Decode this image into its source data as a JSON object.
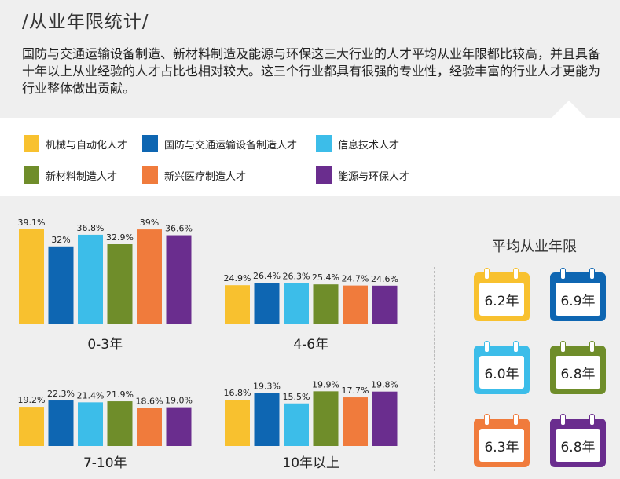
{
  "header": {
    "title": "/从业年限统计/",
    "intro": "国防与交通运输设备制造、新材料制造及能源与环保这三大行业的人才平均从业年限都比较高，并且具备十年以上从业经验的人才占比也相对较大。这三个行业都具有很强的专业性，经验丰富的行业人才更能为行业整体做出贡献。"
  },
  "colors": [
    "#f8c12f",
    "#0e66b2",
    "#3cbde9",
    "#6f8d2a",
    "#f07b3c",
    "#6a2d8e"
  ],
  "chart_data": {
    "type": "bar",
    "series": [
      {
        "name": "机械与自动化人才"
      },
      {
        "name": "国防与交通运输设备制造人才"
      },
      {
        "name": "信息技术人才"
      },
      {
        "name": "新材料制造人才"
      },
      {
        "name": "新兴医疗制造人才"
      },
      {
        "name": "能源与环保人才"
      }
    ],
    "groups": [
      {
        "label": "0-3年",
        "values": [
          39.1,
          32,
          36.8,
          32.9,
          39,
          36.6
        ],
        "value_labels": [
          "39.1%",
          "32%",
          "36.8%",
          "32.9%",
          "39%",
          "36.6%"
        ]
      },
      {
        "label": "4-6年",
        "values": [
          24.9,
          26.4,
          26.3,
          25.4,
          24.7,
          24.6
        ],
        "value_labels": [
          "24.9%",
          "26.4%",
          "26.3%",
          "25.4%",
          "24.7%",
          "24.6%"
        ]
      },
      {
        "label": "7-10年",
        "values": [
          19.2,
          22.3,
          21.4,
          21.9,
          18.6,
          19.0
        ],
        "value_labels": [
          "19.2%",
          "22.3%",
          "21.4%",
          "21.9%",
          "18.6%",
          "19.0%"
        ]
      },
      {
        "label": "10年以上",
        "values": [
          16.8,
          19.3,
          15.5,
          19.9,
          17.7,
          19.8
        ],
        "value_labels": [
          "16.8%",
          "19.3%",
          "15.5%",
          "19.9%",
          "17.7%",
          "19.8%"
        ]
      }
    ]
  },
  "average": {
    "title": "平均从业年限",
    "values": [
      "6.2年",
      "6.9年",
      "6.0年",
      "6.8年",
      "6.3年",
      "6.8年"
    ]
  }
}
